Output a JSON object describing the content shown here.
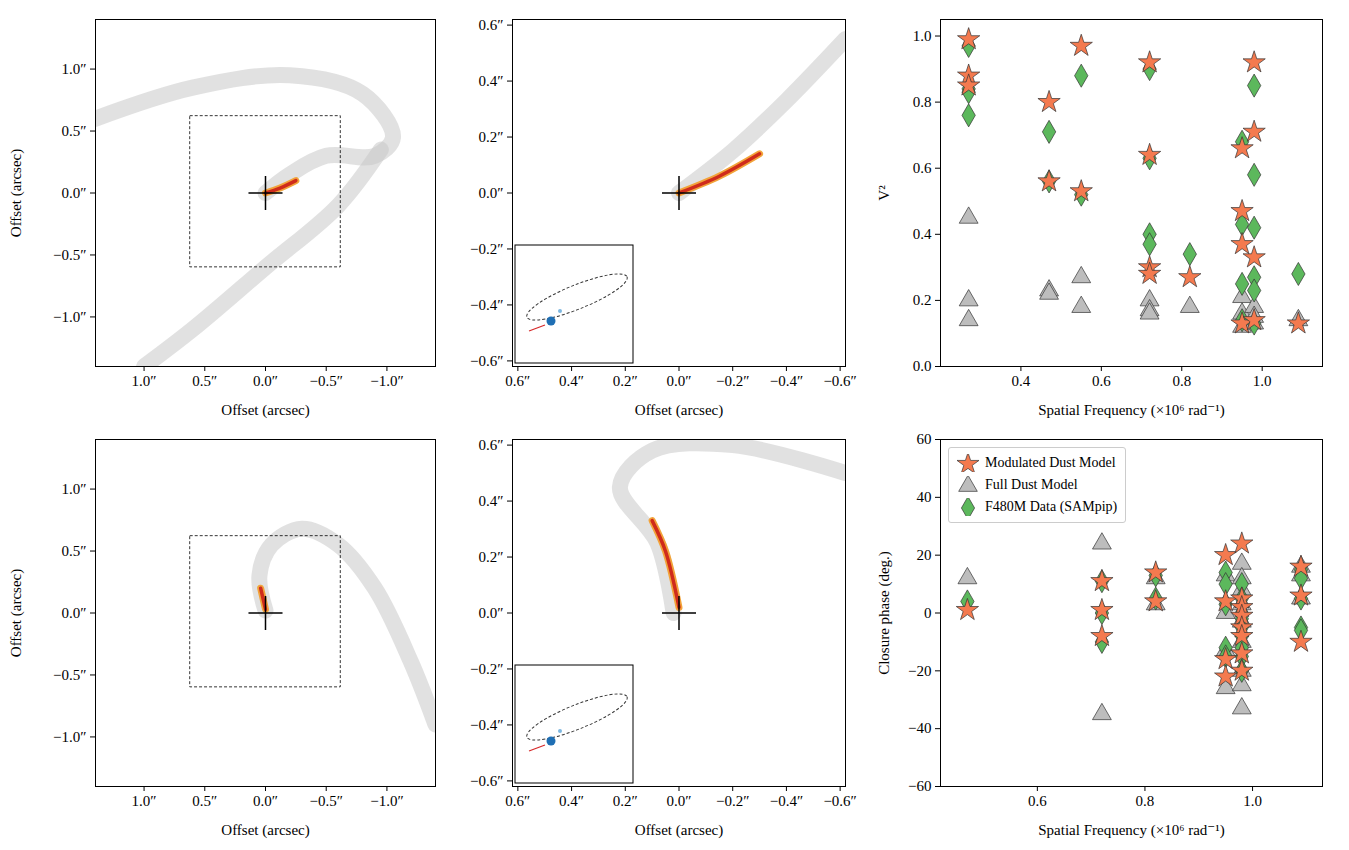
{
  "chart_data": [
    {
      "type": "image",
      "x_label": "Offset (arcsec)",
      "y_label": "Offset (arcsec)",
      "xlim": [
        1.4,
        -1.4
      ],
      "ylim": [
        -1.4,
        1.4
      ],
      "xticks": [
        {
          "value": 1.0,
          "label": "1.0″"
        },
        {
          "value": 0.5,
          "label": "0.5″"
        },
        {
          "value": 0.0,
          "label": "0.0″"
        },
        {
          "value": -0.5,
          "label": "−0.5″"
        },
        {
          "value": -1.0,
          "label": "−1.0″"
        }
      ],
      "yticks": [
        {
          "value": -1.0,
          "label": "−1.0″"
        },
        {
          "value": -0.5,
          "label": "−0.5″"
        },
        {
          "value": 0.0,
          "label": "0.0″"
        },
        {
          "value": 0.5,
          "label": "0.5″"
        },
        {
          "value": 1.0,
          "label": "1.0″"
        }
      ],
      "plume": [
        {
          "x": [
            1.4,
            0.6,
            -0.2,
            -0.8,
            -1.05,
            -0.9,
            -0.5,
            -0.2,
            0.0
          ],
          "y": [
            0.6,
            0.85,
            0.95,
            0.8,
            0.45,
            0.3,
            0.3,
            0.15,
            0.0
          ]
        },
        {
          "x": [
            -0.95,
            -0.6,
            0.0,
            0.6,
            1.0
          ],
          "y": [
            0.35,
            -0.1,
            -0.6,
            -1.1,
            -1.4
          ]
        }
      ],
      "hot_dust": {
        "x": [
          0.0,
          -0.12,
          -0.25
        ],
        "y": [
          0.0,
          0.04,
          0.1
        ]
      },
      "zoom_box": {
        "x": [
          0.62,
          -0.62
        ],
        "y": [
          -0.6,
          0.62
        ]
      },
      "center": {
        "x": 0,
        "y": 0
      }
    },
    {
      "type": "image",
      "x_label": "Offset (arcsec)",
      "xlim": [
        0.62,
        -0.62
      ],
      "ylim": [
        -0.62,
        0.62
      ],
      "xticks": [
        {
          "value": 0.6,
          "label": "0.6″"
        },
        {
          "value": 0.4,
          "label": "0.4″"
        },
        {
          "value": 0.2,
          "label": "0.2″"
        },
        {
          "value": 0.0,
          "label": "0.0″"
        },
        {
          "value": -0.2,
          "label": "−0.2″"
        },
        {
          "value": -0.4,
          "label": "−0.4″"
        },
        {
          "value": -0.6,
          "label": "−0.6″"
        }
      ],
      "yticks": [
        {
          "value": -0.6,
          "label": "−0.6″"
        },
        {
          "value": -0.4,
          "label": "−0.4″"
        },
        {
          "value": -0.2,
          "label": "−0.2″"
        },
        {
          "value": 0.0,
          "label": "0.0″"
        },
        {
          "value": 0.2,
          "label": "0.2″"
        },
        {
          "value": 0.4,
          "label": "0.4″"
        },
        {
          "value": 0.6,
          "label": "0.6″"
        }
      ],
      "plume": [
        {
          "x": [
            0.0,
            -0.2,
            -0.4,
            -0.62
          ],
          "y": [
            0.0,
            0.15,
            0.33,
            0.55
          ]
        }
      ],
      "hot_dust": {
        "x": [
          0.0,
          -0.15,
          -0.3
        ],
        "y": [
          0.0,
          0.06,
          0.14
        ]
      },
      "center": {
        "x": 0,
        "y": 0
      }
    },
    {
      "type": "scatter",
      "x_label": "Spatial Frequency (×10⁶ rad⁻¹)",
      "y_label": "V²",
      "xlim": [
        0.2,
        1.15
      ],
      "ylim": [
        0,
        1.05
      ],
      "xticks": [
        0.4,
        0.6,
        0.8,
        {
          "value": 1.0,
          "label": "1.0"
        }
      ],
      "yticks": [
        {
          "value": 0,
          "label": "0.0"
        },
        0.2,
        0.4,
        0.6,
        0.8,
        {
          "value": 1.0,
          "label": "1.0"
        }
      ],
      "series": [
        {
          "name": "Modulated Dust Model",
          "color": "#f47a4f",
          "marker": "star",
          "x": [
            0.27,
            0.27,
            0.27,
            0.47,
            0.47,
            0.55,
            0.55,
            0.72,
            0.72,
            0.72,
            0.72,
            0.82,
            0.95,
            0.95,
            0.95,
            0.95,
            0.98,
            0.98,
            0.98,
            0.98,
            1.09
          ],
          "y": [
            0.99,
            0.88,
            0.85,
            0.8,
            0.56,
            0.97,
            0.53,
            0.92,
            0.64,
            0.3,
            0.28,
            0.27,
            0.66,
            0.47,
            0.37,
            0.13,
            0.92,
            0.71,
            0.33,
            0.14,
            0.13
          ]
        },
        {
          "name": "Full Dust Model",
          "color": "#bdbdbd",
          "marker": "triangle",
          "x": [
            0.27,
            0.27,
            0.27,
            0.47,
            0.47,
            0.55,
            0.55,
            0.72,
            0.72,
            0.72,
            0.82,
            0.95,
            0.95,
            0.95,
            0.98,
            0.98,
            0.98,
            1.09
          ],
          "y": [
            0.45,
            0.2,
            0.14,
            0.23,
            0.22,
            0.27,
            0.18,
            0.2,
            0.17,
            0.16,
            0.18,
            0.21,
            0.16,
            0.12,
            0.18,
            0.15,
            0.13,
            0.14
          ]
        },
        {
          "name": "F480M Data (SAMpip)",
          "color": "#5cb85c",
          "marker": "diamond",
          "x": [
            0.27,
            0.27,
            0.27,
            0.27,
            0.47,
            0.47,
            0.55,
            0.55,
            0.72,
            0.72,
            0.72,
            0.72,
            0.82,
            0.95,
            0.95,
            0.95,
            0.95,
            0.98,
            0.98,
            0.98,
            0.98,
            0.98,
            0.98,
            1.09
          ],
          "y": [
            0.97,
            0.84,
            0.83,
            0.76,
            0.71,
            0.56,
            0.88,
            0.52,
            0.9,
            0.63,
            0.4,
            0.37,
            0.34,
            0.68,
            0.43,
            0.25,
            0.14,
            0.85,
            0.58,
            0.42,
            0.27,
            0.23,
            0.13,
            0.28
          ]
        }
      ]
    },
    {
      "type": "image",
      "x_label": "Offset (arcsec)",
      "y_label": "Offset (arcsec)",
      "xlim": [
        1.4,
        -1.4
      ],
      "ylim": [
        -1.4,
        1.4
      ],
      "xticks": [
        {
          "value": 1.0,
          "label": "1.0″"
        },
        {
          "value": 0.5,
          "label": "0.5″"
        },
        {
          "value": 0.0,
          "label": "0.0″"
        },
        {
          "value": -0.5,
          "label": "−0.5″"
        },
        {
          "value": -1.0,
          "label": "−1.0″"
        }
      ],
      "yticks": [
        {
          "value": -1.0,
          "label": "−1.0″"
        },
        {
          "value": -0.5,
          "label": "−0.5″"
        },
        {
          "value": 0.0,
          "label": "0.0″"
        },
        {
          "value": 0.5,
          "label": "0.5″"
        },
        {
          "value": 1.0,
          "label": "1.0″"
        }
      ],
      "plume": [
        {
          "x": [
            0.0,
            0.05,
            -0.05,
            -0.3,
            -0.6,
            -0.9,
            -1.2,
            -1.4
          ],
          "y": [
            0.02,
            0.3,
            0.55,
            0.68,
            0.55,
            0.2,
            -0.4,
            -0.9
          ]
        }
      ],
      "hot_dust": {
        "x": [
          0.0,
          0.04
        ],
        "y": [
          0.03,
          0.2
        ]
      },
      "zoom_box": {
        "x": [
          0.62,
          -0.62
        ],
        "y": [
          -0.6,
          0.62
        ]
      },
      "center": {
        "x": 0,
        "y": 0
      }
    },
    {
      "type": "image",
      "x_label": "Offset (arcsec)",
      "xlim": [
        0.62,
        -0.62
      ],
      "ylim": [
        -0.62,
        0.62
      ],
      "xticks": [
        {
          "value": 0.6,
          "label": "0.6″"
        },
        {
          "value": 0.4,
          "label": "0.4″"
        },
        {
          "value": 0.2,
          "label": "0.2″"
        },
        {
          "value": 0.0,
          "label": "0.0″"
        },
        {
          "value": -0.2,
          "label": "−0.2″"
        },
        {
          "value": -0.4,
          "label": "−0.4″"
        },
        {
          "value": -0.6,
          "label": "−0.6″"
        }
      ],
      "yticks": [
        {
          "value": -0.6,
          "label": "−0.6″"
        },
        {
          "value": -0.4,
          "label": "−0.4″"
        },
        {
          "value": -0.2,
          "label": "−0.2″"
        },
        {
          "value": 0.0,
          "label": "0.0″"
        },
        {
          "value": 0.2,
          "label": "0.2″"
        },
        {
          "value": 0.4,
          "label": "0.4″"
        },
        {
          "value": 0.6,
          "label": "0.6″"
        }
      ],
      "plume": [
        {
          "x": [
            0.02,
            0.08,
            0.22,
            0.1,
            -0.2,
            -0.62
          ],
          "y": [
            0.0,
            0.25,
            0.45,
            0.58,
            0.6,
            0.5
          ]
        }
      ],
      "hot_dust": {
        "x": [
          0.0,
          0.05,
          0.1
        ],
        "y": [
          0.02,
          0.22,
          0.33
        ]
      },
      "center": {
        "x": 0,
        "y": 0
      }
    },
    {
      "type": "scatter",
      "x_label": "Spatial Frequency (×10⁶ rad⁻¹)",
      "y_label": "Closure phase (deg.)",
      "xlim": [
        0.42,
        1.13
      ],
      "ylim": [
        -60,
        60
      ],
      "xticks": [
        0.6,
        0.8,
        {
          "value": 1.0,
          "label": "1.0"
        }
      ],
      "yticks": [
        {
          "value": -60,
          "label": "−60"
        },
        {
          "value": -40,
          "label": "−40"
        },
        {
          "value": -20,
          "label": "−20"
        },
        0,
        20,
        40,
        60
      ],
      "legend": "upper left",
      "series": [
        {
          "name": "Modulated Dust Model",
          "color": "#f47a4f",
          "marker": "star",
          "x": [
            0.47,
            0.72,
            0.72,
            0.72,
            0.82,
            0.82,
            0.95,
            0.95,
            0.95,
            0.95,
            0.98,
            0.98,
            0.98,
            0.98,
            0.98,
            0.98,
            0.98,
            0.98,
            1.09,
            1.09,
            1.09
          ],
          "y": [
            1,
            11,
            1,
            -8,
            14,
            4,
            20,
            4,
            -16,
            -22,
            24,
            5,
            2,
            -1,
            -5,
            -8,
            -14,
            -20,
            16,
            6,
            -10
          ]
        },
        {
          "name": "Full Dust Model",
          "color": "#bdbdbd",
          "marker": "triangle",
          "x": [
            0.47,
            0.72,
            0.72,
            0.82,
            0.82,
            0.95,
            0.95,
            0.95,
            0.95,
            0.98,
            0.98,
            0.98,
            0.98,
            0.98,
            0.98,
            0.98,
            0.98,
            0.98,
            1.09,
            1.09,
            1.09
          ],
          "y": [
            12,
            24,
            -35,
            12,
            3,
            13,
            0,
            -13,
            -26,
            17,
            12,
            8,
            3,
            -3,
            -10,
            -20,
            -25,
            -33,
            16,
            13,
            5
          ]
        },
        {
          "name": "F480M Data (SAMpip)",
          "color": "#5cb85c",
          "marker": "diamond",
          "x": [
            0.47,
            0.72,
            0.72,
            0.72,
            0.82,
            0.82,
            0.95,
            0.95,
            0.95,
            0.95,
            0.95,
            0.98,
            0.98,
            0.98,
            0.98,
            0.98,
            0.98,
            0.98,
            0.98,
            0.98,
            1.09,
            1.09,
            1.09,
            1.09,
            1.09
          ],
          "y": [
            4,
            11,
            0,
            -10,
            13,
            5,
            14,
            10,
            3,
            -12,
            -15,
            10,
            5,
            0,
            -2,
            -5,
            -8,
            -12,
            -15,
            -20,
            15,
            12,
            5,
            -5,
            -6
          ]
        }
      ]
    }
  ]
}
